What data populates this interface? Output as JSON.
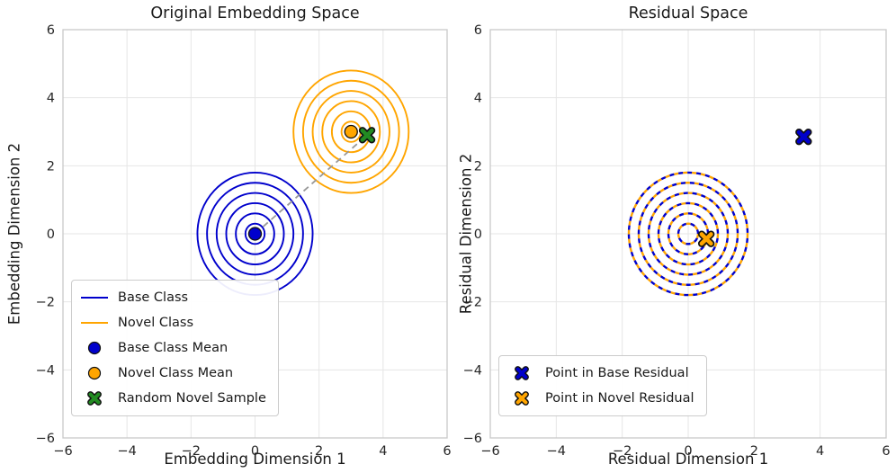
{
  "colors": {
    "base": "#0000cc",
    "novel": "#ffa500",
    "sample": "#228b22",
    "connector": "#999999",
    "grid": "#e6e6e6",
    "frame": "#c9c9c9",
    "text": "#1a1a1a"
  },
  "chart_data": [
    {
      "type": "scatter",
      "title": "Original Embedding Space",
      "xlabel": "Embedding Dimension 1",
      "ylabel": "Embedding Dimension 2",
      "xlim": [
        -6,
        6
      ],
      "ylim": [
        -6,
        6
      ],
      "xticks": [
        -6,
        -4,
        -2,
        0,
        2,
        4,
        6
      ],
      "yticks": [
        -6,
        -4,
        -2,
        0,
        2,
        4,
        6
      ],
      "grid": true,
      "contour_sets": [
        {
          "name": "Base Class",
          "color_key": "base",
          "center": [
            0,
            0
          ],
          "radii": [
            0.3,
            0.6,
            0.9,
            1.2,
            1.5,
            1.8
          ],
          "dash": null
        },
        {
          "name": "Novel Class",
          "color_key": "novel",
          "center": [
            3,
            3
          ],
          "radii": [
            0.3,
            0.6,
            0.9,
            1.2,
            1.5,
            1.8
          ],
          "dash": null
        }
      ],
      "connector": {
        "from": [
          0,
          0
        ],
        "to": [
          3.5,
          2.9
        ],
        "color_key": "connector",
        "dash": [
          7,
          5
        ]
      },
      "points": [
        {
          "label": "Base Class Mean",
          "x": 0,
          "y": 0,
          "marker": "circle",
          "color_key": "base"
        },
        {
          "label": "Novel Class Mean",
          "x": 3,
          "y": 3,
          "marker": "circle",
          "color_key": "novel"
        },
        {
          "label": "Random Novel Sample",
          "x": 3.5,
          "y": 2.9,
          "marker": "X",
          "color_key": "sample"
        }
      ],
      "legend": {
        "position": "lower left",
        "entries": [
          {
            "swatch": "line",
            "color_key": "base",
            "label": "Base Class"
          },
          {
            "swatch": "line",
            "color_key": "novel",
            "label": "Novel Class"
          },
          {
            "swatch": "circle",
            "color_key": "base",
            "label": "Base Class Mean"
          },
          {
            "swatch": "circle",
            "color_key": "novel",
            "label": "Novel Class Mean"
          },
          {
            "swatch": "X",
            "color_key": "sample",
            "label": "Random Novel Sample"
          }
        ]
      }
    },
    {
      "type": "scatter",
      "title": "Residual Space",
      "xlabel": "Residual Dimension 1",
      "ylabel": "Residual Dimension 2",
      "xlim": [
        -6,
        6
      ],
      "ylim": [
        -6,
        6
      ],
      "xticks": [
        -6,
        -4,
        -2,
        0,
        2,
        4,
        6
      ],
      "yticks": [
        -6,
        -4,
        -2,
        0,
        2,
        4,
        6
      ],
      "grid": true,
      "contour_sets": [
        {
          "name": "Novel Residual",
          "color_key": "novel",
          "center": [
            0,
            0
          ],
          "radii": [
            0.3,
            0.6,
            0.9,
            1.2,
            1.5,
            1.8
          ],
          "dash": [
            5,
            5
          ],
          "dashoffset": 0
        },
        {
          "name": "Base Residual",
          "color_key": "base",
          "center": [
            0,
            0
          ],
          "radii": [
            0.3,
            0.6,
            0.9,
            1.2,
            1.5,
            1.8
          ],
          "dash": [
            5,
            5
          ],
          "dashoffset": 5
        }
      ],
      "connector": null,
      "points": [
        {
          "label": "Point in Base Residual",
          "x": 3.5,
          "y": 2.85,
          "marker": "X",
          "color_key": "base"
        },
        {
          "label": "Point in Novel Residual",
          "x": 0.55,
          "y": -0.15,
          "marker": "X",
          "color_key": "novel"
        }
      ],
      "legend": {
        "position": "lower left",
        "entries": [
          {
            "swatch": "X",
            "color_key": "base",
            "label": "Point in Base Residual"
          },
          {
            "swatch": "X",
            "color_key": "novel",
            "label": "Point in Novel Residual"
          }
        ]
      }
    }
  ]
}
